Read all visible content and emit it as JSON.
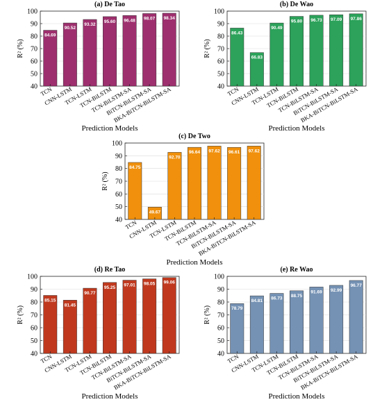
{
  "figure": {
    "panels": [
      {
        "title": "(a) De Tao",
        "ylabel": "R² (%)",
        "xlabel": "Prediction Models",
        "color": "#9e2f6e",
        "text_color": "#ffffff"
      },
      {
        "title": "(b) De Wao",
        "ylabel": "R² (%)",
        "xlabel": "Prediction Models",
        "color": "#2ca25a",
        "text_color": "#ffffff"
      },
      {
        "title": "(c) De Two",
        "ylabel": "R² (%)",
        "xlabel": "Prediction Models",
        "color": "#f0900c",
        "text_color": "#ffffff"
      },
      {
        "title": "(d) Re Tao",
        "ylabel": "R² (%)",
        "xlabel": "Prediction Models",
        "color": "#c0391e",
        "text_color": "#ffffff"
      },
      {
        "title": "(e) Re Wao",
        "ylabel": "R² (%)",
        "xlabel": "Prediction Models",
        "color": "#7592b4",
        "text_color": "#ffffff"
      }
    ]
  },
  "chart_data": [
    {
      "type": "bar",
      "title": "(a) De Tao",
      "xlabel": "Prediction Models",
      "ylabel": "R² (%)",
      "categories": [
        "TCN",
        "CNN-LSTM",
        "TCN-LSTM",
        "TCN-BiLSTM",
        "TCN-BiLSTM-SA",
        "BiTCN-BiLSTM-SA",
        "BKA-BiTCN-BiLSTM-SA"
      ],
      "values": [
        84.69,
        90.52,
        93.32,
        95.6,
        96.48,
        98.07,
        98.34
      ],
      "value_labels": [
        "84.69",
        "90.52",
        "93.32",
        "95.60",
        "96.48",
        "98.07",
        "98.34"
      ],
      "ylim": [
        40,
        100
      ],
      "yticks": [
        "40",
        "50",
        "60",
        "70",
        "80",
        "90",
        "100"
      ],
      "grid": true,
      "legend": "none"
    },
    {
      "type": "bar",
      "title": "(b) De Wao",
      "xlabel": "Prediction Models",
      "ylabel": "R² (%)",
      "categories": [
        "TCN",
        "CNN-LSTM",
        "TCN-LSTM",
        "TCN-BiLSTM",
        "TCN-BiLSTM-SA",
        "BiTCN-BiLSTM-SA",
        "BKA-BiTCN-BiLSTM-SA"
      ],
      "values": [
        86.43,
        66.83,
        90.49,
        95.8,
        96.73,
        97.09,
        97.86
      ],
      "value_labels": [
        "86.43",
        "66.83",
        "90.49",
        "95.80",
        "96.73",
        "97.09",
        "97.86"
      ],
      "ylim": [
        40,
        100
      ],
      "yticks": [
        "40",
        "50",
        "60",
        "70",
        "80",
        "90",
        "100"
      ],
      "grid": true,
      "legend": "none"
    },
    {
      "type": "bar",
      "title": "(c) De Two",
      "xlabel": "Prediction Models",
      "ylabel": "R² (%)",
      "categories": [
        "TCN",
        "CNN-LSTM",
        "TCN-LSTM",
        "TCN-BiLSTM",
        "TCN-BiLSTM-SA",
        "BiTCN-BiLSTM-SA",
        "BKA-BiTCN-BiLSTM-SA"
      ],
      "values": [
        84.75,
        49.67,
        92.7,
        96.64,
        97.62,
        96.61,
        97.62
      ],
      "value_labels": [
        "84.75",
        "49.67",
        "92.70",
        "96.64",
        "97.62",
        "96.61",
        "97.62"
      ],
      "ylim": [
        40,
        100
      ],
      "yticks": [
        "40",
        "50",
        "60",
        "70",
        "80",
        "90",
        "100"
      ],
      "grid": true,
      "legend": "none"
    },
    {
      "type": "bar",
      "title": "(d) Re Tao",
      "xlabel": "Prediction Models",
      "ylabel": "R² (%)",
      "categories": [
        "TCN",
        "CNN-LSTM",
        "TCN-LSTM",
        "TCN-BiLSTM",
        "TCN-BiLSTM-SA",
        "BiTCN-BiLSTM-SA",
        "BKA-BiTCN-BiLSTM-SA"
      ],
      "values": [
        85.15,
        81.45,
        90.77,
        95.25,
        97.01,
        98.05,
        99.06
      ],
      "value_labels": [
        "85.15",
        "81.45",
        "90.77",
        "95.25",
        "97.01",
        "98.05",
        "99.06"
      ],
      "ylim": [
        40,
        100
      ],
      "yticks": [
        "40",
        "50",
        "60",
        "70",
        "80",
        "90",
        "100"
      ],
      "grid": true,
      "legend": "none"
    },
    {
      "type": "bar",
      "title": "(e) Re Wao",
      "xlabel": "Prediction Models",
      "ylabel": "R² (%)",
      "categories": [
        "TCN",
        "CNN-LSTM",
        "TCN-LSTM",
        "TCN-BiLSTM",
        "TCN-BiLSTM-SA",
        "BiTCN-BiLSTM-SA",
        "BKA-BiTCN-BiLSTM-SA"
      ],
      "values": [
        78.79,
        84.81,
        86.73,
        88.75,
        91.69,
        92.99,
        96.77
      ],
      "value_labels": [
        "78.79",
        "84.81",
        "86.73",
        "88.75",
        "91.69",
        "92.99",
        "96.77"
      ],
      "ylim": [
        40,
        100
      ],
      "yticks": [
        "40",
        "50",
        "60",
        "70",
        "80",
        "90",
        "100"
      ],
      "grid": true,
      "legend": "none"
    }
  ]
}
